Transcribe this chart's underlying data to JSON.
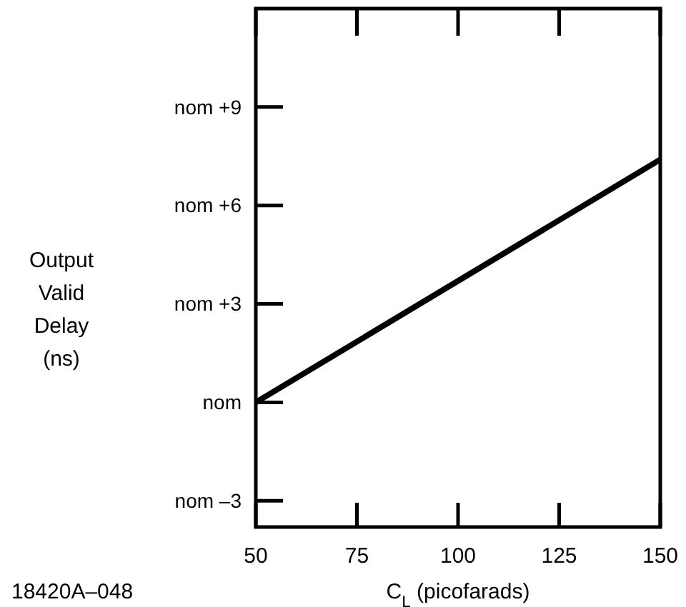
{
  "chart_data": {
    "type": "line",
    "xlabel": "C$_{L}$ (picofarads)",
    "ylabel": "Output Valid Delay (ns)",
    "annotations": [
      "18420A–048"
    ],
    "x": [
      50,
      150
    ],
    "series": [
      {
        "color": "#000000",
        "values": [
          0,
          7.4
        ]
      }
    ],
    "xlim": [
      50,
      150
    ],
    "xticks": [
      50,
      75,
      100,
      125,
      150
    ],
    "ylim": [
      -3.8,
      12
    ],
    "yticks": [
      {
        "value": -3,
        "label": "nom –3"
      },
      {
        "value": 0,
        "label": "nom"
      },
      {
        "value": 3,
        "label": "nom +3"
      },
      {
        "value": 6,
        "label": "nom +6"
      },
      {
        "value": 9,
        "label": "nom +9"
      }
    ],
    "grid": false,
    "marker": "none",
    "line_style": "solid"
  }
}
